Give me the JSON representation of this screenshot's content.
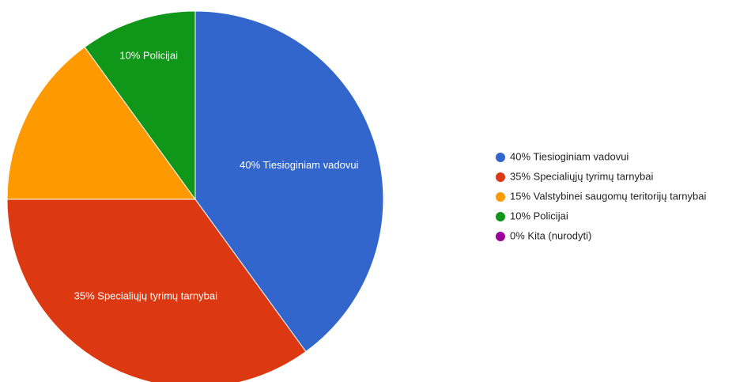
{
  "chart_data": {
    "type": "pie",
    "categories": [
      "40% Tiesioginiam vadovui",
      "35% Specialiųjų tyrimų tarnybai",
      "15% Valstybinei saugomų teritorijų tarnybai",
      "10% Policijai",
      "0% Kita (nurodyti)"
    ],
    "values": [
      40,
      35,
      15,
      10,
      0
    ],
    "colors": [
      "#3366cc",
      "#dc3912",
      "#ff9900",
      "#109618",
      "#990099"
    ],
    "legend": "right"
  }
}
